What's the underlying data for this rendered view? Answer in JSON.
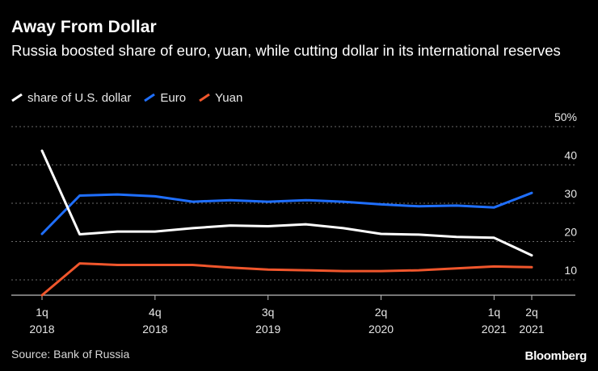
{
  "chart_data": {
    "type": "line",
    "title": "Away From Dollar",
    "subtitle": "Russia boosted share of euro, yuan, while cutting dollar in its international reserves",
    "source": "Source: Bank of Russia",
    "brand": "Bloomberg",
    "x_ticks": [
      {
        "index": 0,
        "line1": "1q",
        "line2": "2018"
      },
      {
        "index": 3,
        "line1": "4q",
        "line2": "2018"
      },
      {
        "index": 6,
        "line1": "3q",
        "line2": "2019"
      },
      {
        "index": 9,
        "line1": "2q",
        "line2": "2020"
      },
      {
        "index": 12,
        "line1": "1q",
        "line2": "2021"
      },
      {
        "index": 13,
        "line1": "2q",
        "line2": "2021"
      }
    ],
    "y_ticks": [
      {
        "value": 10,
        "label": "10"
      },
      {
        "value": 20,
        "label": "20"
      },
      {
        "value": 30,
        "label": "30"
      },
      {
        "value": 40,
        "label": "40"
      },
      {
        "value": 50,
        "label": "50%"
      }
    ],
    "ylim": [
      6,
      50
    ],
    "grid": true,
    "legend_position": "top-left",
    "series": [
      {
        "name": "share of U.S. dollar",
        "color": "#ffffff",
        "values": [
          43.7,
          21.9,
          22.6,
          22.6,
          23.5,
          24.2,
          24.0,
          24.5,
          23.5,
          22.0,
          21.8,
          21.2,
          21.0,
          16.4
        ]
      },
      {
        "name": "Euro",
        "color": "#1f6fff",
        "values": [
          22.0,
          32.0,
          32.3,
          31.8,
          30.4,
          30.8,
          30.4,
          30.8,
          30.4,
          29.7,
          29.2,
          29.4,
          28.9,
          32.7
        ]
      },
      {
        "name": "Yuan",
        "color": "#f0562c",
        "values": [
          6.0,
          14.3,
          13.9,
          13.9,
          13.9,
          13.2,
          12.7,
          12.5,
          12.3,
          12.3,
          12.5,
          13.0,
          13.5,
          13.3
        ]
      }
    ]
  }
}
